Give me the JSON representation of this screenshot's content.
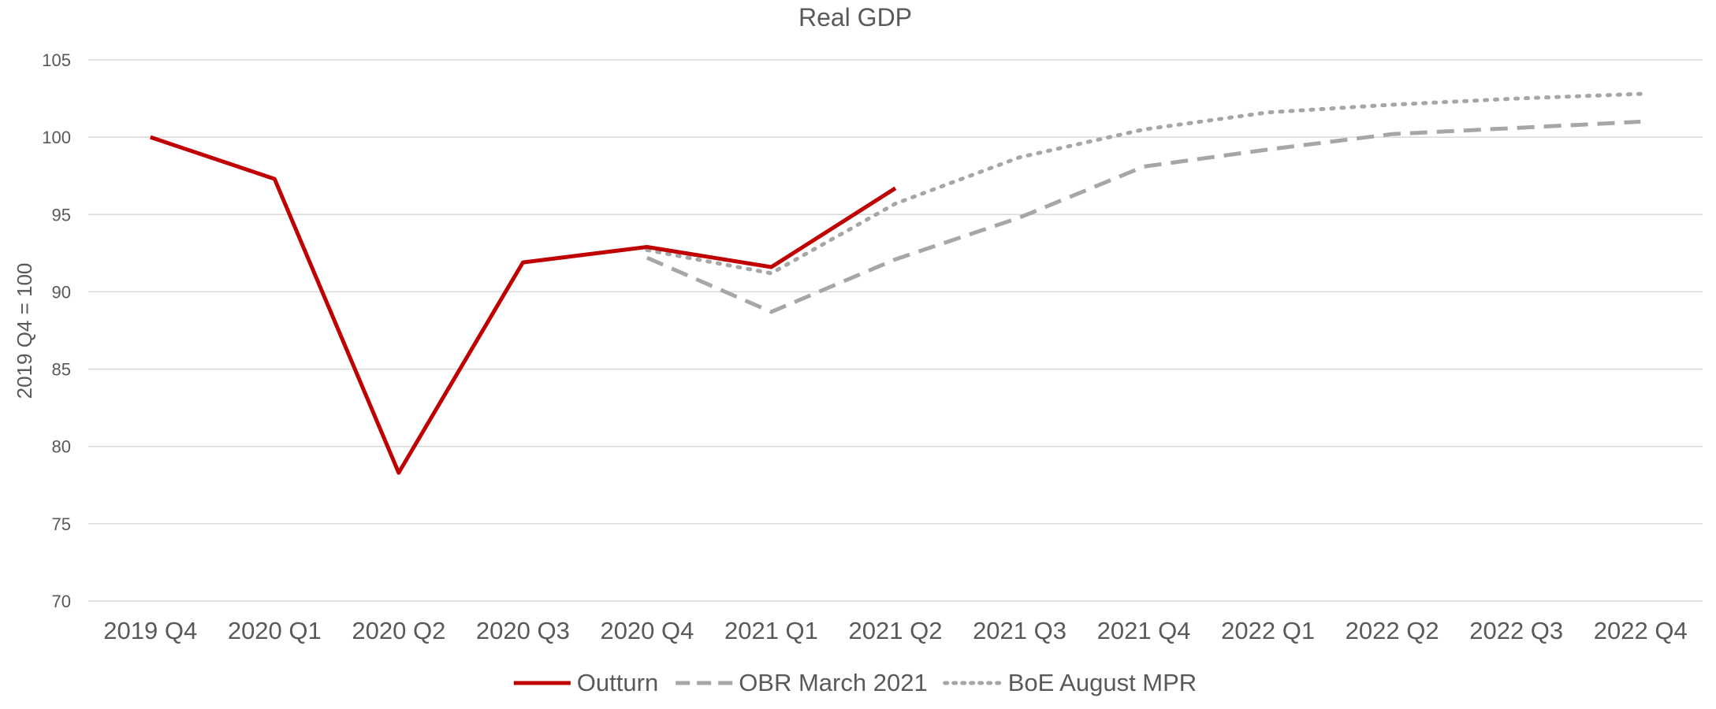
{
  "chart_data": {
    "type": "line",
    "title": "Real GDP",
    "xlabel": "",
    "ylabel": "2019 Q4 = 100",
    "ylim": [
      70,
      105
    ],
    "yticks": [
      70,
      75,
      80,
      85,
      90,
      95,
      100,
      105
    ],
    "grid": true,
    "legend_position": "bottom",
    "categories": [
      "2019 Q4",
      "2020 Q1",
      "2020 Q2",
      "2020 Q3",
      "2020 Q4",
      "2021 Q1",
      "2021 Q2",
      "2021 Q3",
      "2021 Q4",
      "2022 Q1",
      "2022 Q2",
      "2022 Q3",
      "2022 Q4"
    ],
    "series": [
      {
        "name": "Outturn",
        "color": "#c00000",
        "style": "solid",
        "values": [
          100,
          97.3,
          78.3,
          91.9,
          92.9,
          91.6,
          96.7,
          null,
          null,
          null,
          null,
          null,
          null
        ]
      },
      {
        "name": "OBR March 2021",
        "color": "#a6a6a6",
        "style": "dashed",
        "values": [
          null,
          null,
          null,
          null,
          92.2,
          88.7,
          92.1,
          94.8,
          98.1,
          99.2,
          100.2,
          100.6,
          101.0
        ]
      },
      {
        "name": "BoE August MPR",
        "color": "#a6a6a6",
        "style": "dotted",
        "values": [
          null,
          null,
          null,
          null,
          92.7,
          91.2,
          95.7,
          98.7,
          100.5,
          101.6,
          102.1,
          102.5,
          102.8
        ]
      }
    ]
  }
}
